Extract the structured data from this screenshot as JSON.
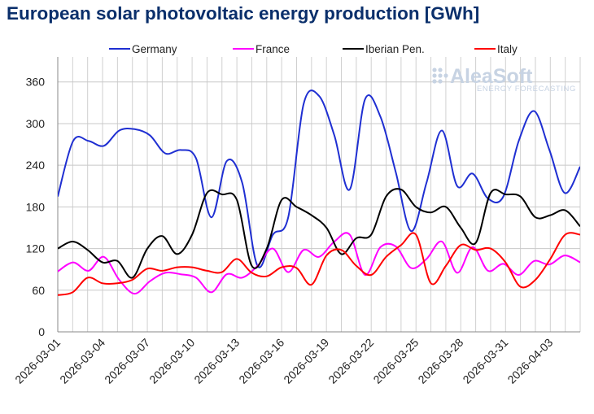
{
  "chart_data": {
    "type": "line",
    "title": "European solar photovoltaic energy production [GWh]",
    "xlabel": "",
    "ylabel": "",
    "ylim": [
      0,
      396
    ],
    "yticks": [
      0,
      60,
      120,
      180,
      240,
      300,
      360
    ],
    "x_start": "2026-03-01",
    "x_ticks": [
      "2026-03-01",
      "2026-03-04",
      "2026-03-07",
      "2026-03-10",
      "2026-03-13",
      "2026-03-16",
      "2026-03-19",
      "2026-03-22",
      "2026-03-25",
      "2026-03-28",
      "2026-03-31",
      "2026-04-03"
    ],
    "legend_position": "top",
    "grid": true,
    "series": [
      {
        "name": "Germany",
        "color": "#1f2fd2",
        "values": [
          195,
          275,
          275,
          268,
          290,
          292,
          283,
          257,
          262,
          250,
          165,
          246,
          215,
          95,
          140,
          165,
          328,
          340,
          283,
          205,
          335,
          310,
          230,
          145,
          215,
          290,
          210,
          228,
          192,
          195,
          275,
          318,
          262,
          200,
          238
        ]
      },
      {
        "name": "France",
        "color": "#ff00ff",
        "values": [
          87,
          100,
          88,
          108,
          75,
          55,
          73,
          85,
          83,
          78,
          57,
          83,
          78,
          95,
          120,
          86,
          118,
          108,
          130,
          140,
          82,
          122,
          123,
          92,
          105,
          130,
          85,
          122,
          88,
          98,
          82,
          102,
          97,
          110,
          100
        ]
      },
      {
        "name": "Iberian Pen.",
        "color": "#000000",
        "values": [
          120,
          130,
          118,
          100,
          102,
          78,
          120,
          138,
          112,
          140,
          200,
          198,
          190,
          95,
          120,
          190,
          180,
          168,
          150,
          112,
          135,
          140,
          195,
          205,
          180,
          172,
          180,
          150,
          128,
          200,
          198,
          195,
          165,
          168,
          175,
          152
        ]
      },
      {
        "name": "Italy",
        "color": "#ff0000",
        "values": [
          53,
          57,
          78,
          70,
          70,
          75,
          91,
          88,
          93,
          93,
          88,
          86,
          105,
          85,
          80,
          93,
          92,
          68,
          110,
          118,
          95,
          82,
          108,
          125,
          140,
          70,
          95,
          125,
          118,
          120,
          100,
          65,
          75,
          105,
          140,
          140
        ]
      }
    ]
  },
  "watermark": {
    "brand": "AleaSoft",
    "tagline": "ENERGY FORECASTING"
  }
}
